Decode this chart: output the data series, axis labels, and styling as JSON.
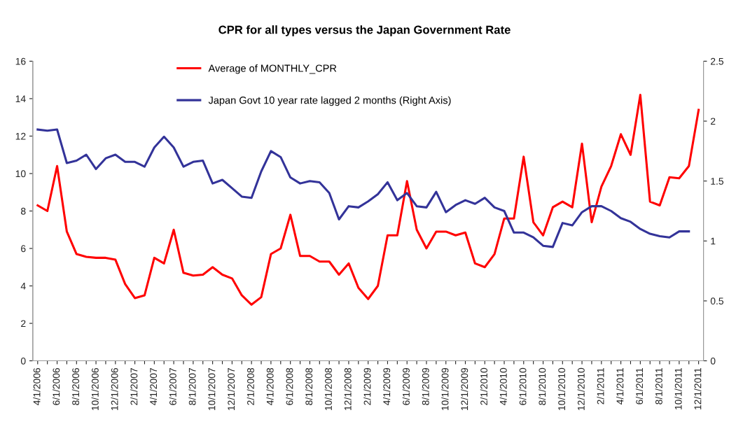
{
  "chart_data": {
    "type": "line",
    "title": "CPR for all types versus the Japan Government Rate",
    "categories": [
      "4/1/2006",
      null,
      "6/1/2006",
      null,
      "8/1/2006",
      null,
      "10/1/2006",
      null,
      "12/1/2006",
      null,
      "2/1/2007",
      null,
      "4/1/2007",
      null,
      "6/1/2007",
      null,
      "8/1/2007",
      null,
      "10/1/2007",
      null,
      "12/1/2007",
      null,
      "2/1/2008",
      null,
      "4/1/2008",
      null,
      "6/1/2008",
      null,
      "8/1/2008",
      null,
      "10/1/2008",
      null,
      "12/1/2008",
      null,
      "2/1/2009",
      null,
      "4/1/2009",
      null,
      "6/1/2009",
      null,
      "8/1/2009",
      null,
      "10/1/2009",
      null,
      "12/1/2009",
      null,
      "2/1/2010",
      null,
      "4/1/2010",
      null,
      "6/1/2010",
      null,
      "8/1/2010",
      null,
      "10/1/2010",
      null,
      "12/1/2010",
      null,
      "2/1/2011",
      null,
      "4/1/2011",
      null,
      "6/1/2011",
      null,
      "8/1/2011",
      null,
      "10/1/2011",
      null,
      "12/1/2011"
    ],
    "series": [
      {
        "name": "Average of MONTHLY_CPR",
        "color": "#ff0000",
        "values": [
          8.3,
          8.0,
          10.4,
          6.9,
          5.7,
          5.55,
          5.5,
          5.5,
          5.4,
          4.1,
          3.35,
          3.5,
          5.5,
          5.2,
          7.0,
          4.7,
          4.55,
          4.6,
          5.0,
          4.6,
          4.4,
          3.5,
          3.0,
          3.4,
          5.7,
          6.0,
          7.8,
          5.6,
          5.6,
          5.3,
          5.3,
          4.6,
          5.2,
          3.9,
          3.3,
          4.0,
          6.7,
          6.7,
          9.6,
          7.0,
          6.0,
          6.9,
          6.9,
          6.7,
          6.85,
          5.2,
          5.0,
          5.7,
          7.6,
          7.6,
          10.9,
          7.4,
          6.7,
          8.2,
          8.5,
          8.2,
          11.6,
          7.4,
          9.3,
          10.4,
          12.1,
          11.0,
          14.2,
          8.5,
          8.3,
          9.8,
          9.75,
          10.4,
          13.4
        ]
      },
      {
        "name": "Japan Govt 10 year rate lagged 2 months (Right Axis)",
        "color": "#333399",
        "axis": "y2",
        "values": [
          1.93,
          1.92,
          1.93,
          1.65,
          1.67,
          1.72,
          1.6,
          1.69,
          1.72,
          1.66,
          1.66,
          1.62,
          1.78,
          1.87,
          1.78,
          1.62,
          1.66,
          1.67,
          1.48,
          1.51,
          1.44,
          1.37,
          1.36,
          1.58,
          1.75,
          1.7,
          1.53,
          1.48,
          1.5,
          1.49,
          1.4,
          1.18,
          1.29,
          1.28,
          1.33,
          1.39,
          1.49,
          1.34,
          1.4,
          1.29,
          1.28,
          1.41,
          1.24,
          1.3,
          1.34,
          1.31,
          1.36,
          1.28,
          1.25,
          1.07,
          1.07,
          1.03,
          0.96,
          0.95,
          1.15,
          1.13,
          1.24,
          1.29,
          1.29,
          1.25,
          1.19,
          1.16,
          1.1,
          1.06,
          1.04,
          1.03,
          1.08,
          1.08,
          null
        ]
      }
    ],
    "ylim": [
      0,
      16
    ],
    "yticks": [
      0,
      2,
      4,
      6,
      8,
      10,
      12,
      14,
      16
    ],
    "y2lim": [
      0,
      2.5
    ],
    "y2ticks": [
      0,
      0.5,
      1,
      1.5,
      2,
      2.5
    ],
    "legend": "top",
    "grid": false,
    "marker": "none",
    "line_style": "solid"
  }
}
